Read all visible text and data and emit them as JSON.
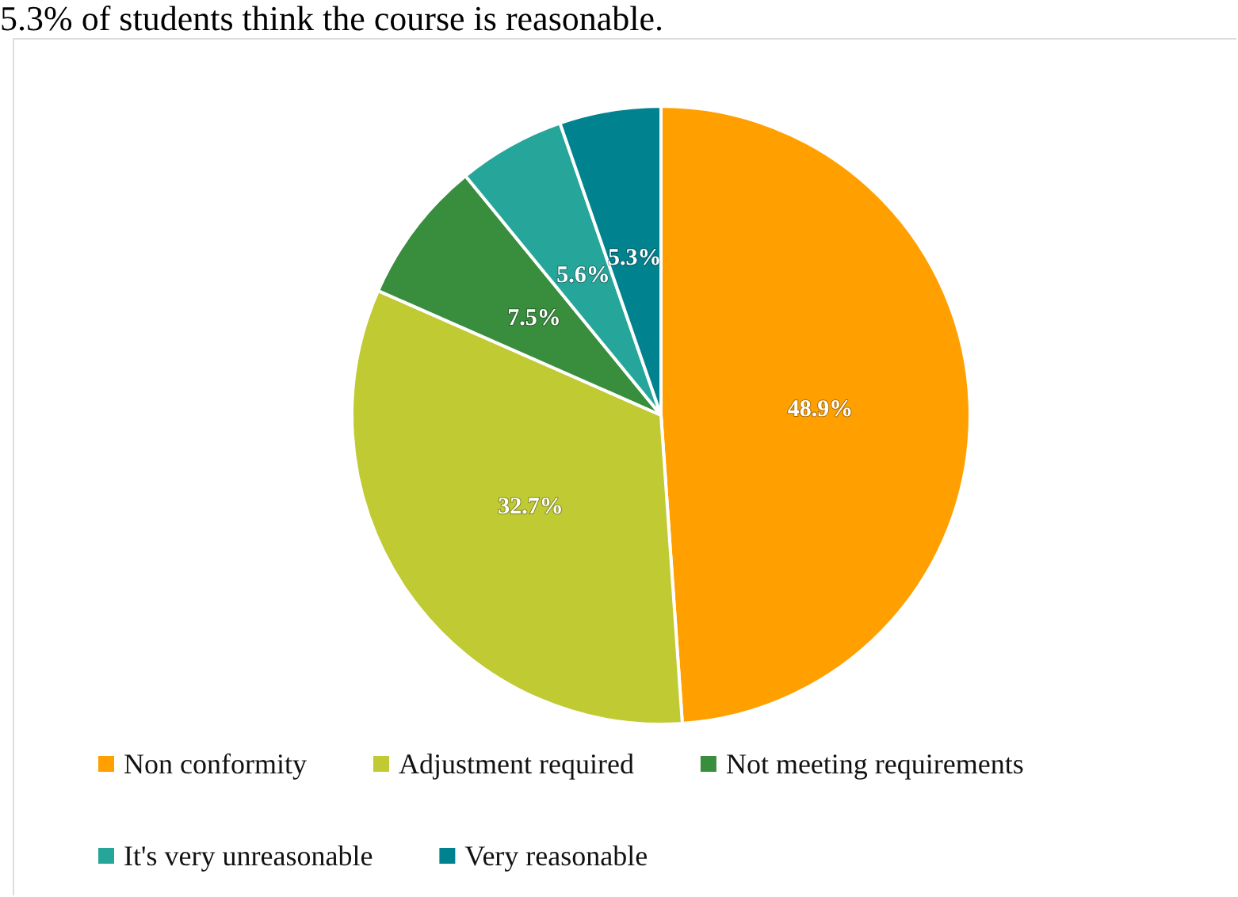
{
  "chart_data": {
    "type": "pie",
    "annotations": [
      "5.3% of students think the course is reasonable."
    ],
    "categories": [
      "Non conformity",
      "Adjustment required",
      "Not meeting requirements",
      "It's very unreasonable",
      "Very reasonable"
    ],
    "values": [
      48.9,
      32.7,
      7.5,
      5.6,
      5.3
    ],
    "colors": [
      "#ffa000",
      "#c0ca33",
      "#388e3c",
      "#26a69a",
      "#00838f"
    ],
    "value_labels": [
      "48.9%",
      "32.7%",
      "7.5%",
      "5.6%",
      "5.3%"
    ],
    "legend": "bottom"
  }
}
